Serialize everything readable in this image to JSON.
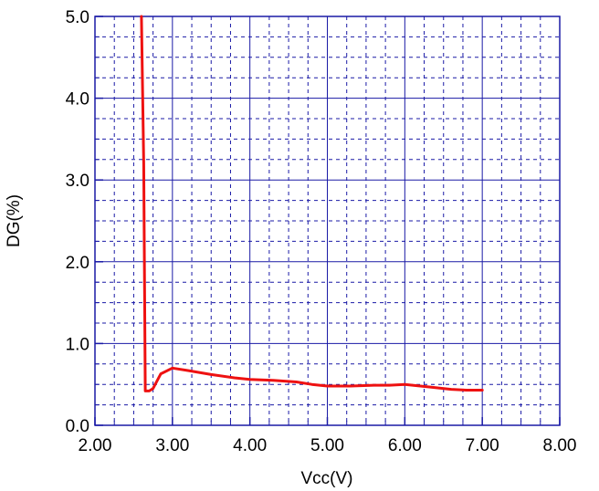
{
  "chart_data": {
    "type": "line",
    "title": "",
    "xlabel": "Vcc(V)",
    "ylabel": "DG(%)",
    "xlim": [
      2.0,
      8.0
    ],
    "ylim": [
      0.0,
      5.0
    ],
    "x_ticks": [
      "2.00",
      "3.00",
      "4.00",
      "5.00",
      "6.00",
      "7.00",
      "8.00"
    ],
    "y_ticks": [
      "0.0",
      "1.0",
      "2.0",
      "3.0",
      "4.0",
      "5.0"
    ],
    "grid": {
      "major": true,
      "minor": true,
      "minor_divisions": 4
    },
    "colors": {
      "series": "#ee1111",
      "grid": "#1a1aa6",
      "axis": "#1a1aa6"
    },
    "series": [
      {
        "x": [
          2.6,
          2.63,
          2.65,
          2.7,
          2.75,
          2.85,
          3.0,
          3.2,
          3.5,
          3.8,
          4.0,
          4.3,
          4.6,
          4.8,
          5.0,
          5.3,
          5.6,
          5.8,
          6.0,
          6.3,
          6.6,
          6.8,
          7.0
        ],
        "y": [
          5.0,
          3.2,
          0.42,
          0.42,
          0.45,
          0.63,
          0.7,
          0.67,
          0.62,
          0.58,
          0.56,
          0.55,
          0.53,
          0.5,
          0.48,
          0.48,
          0.49,
          0.49,
          0.5,
          0.47,
          0.44,
          0.43,
          0.43
        ]
      }
    ]
  }
}
